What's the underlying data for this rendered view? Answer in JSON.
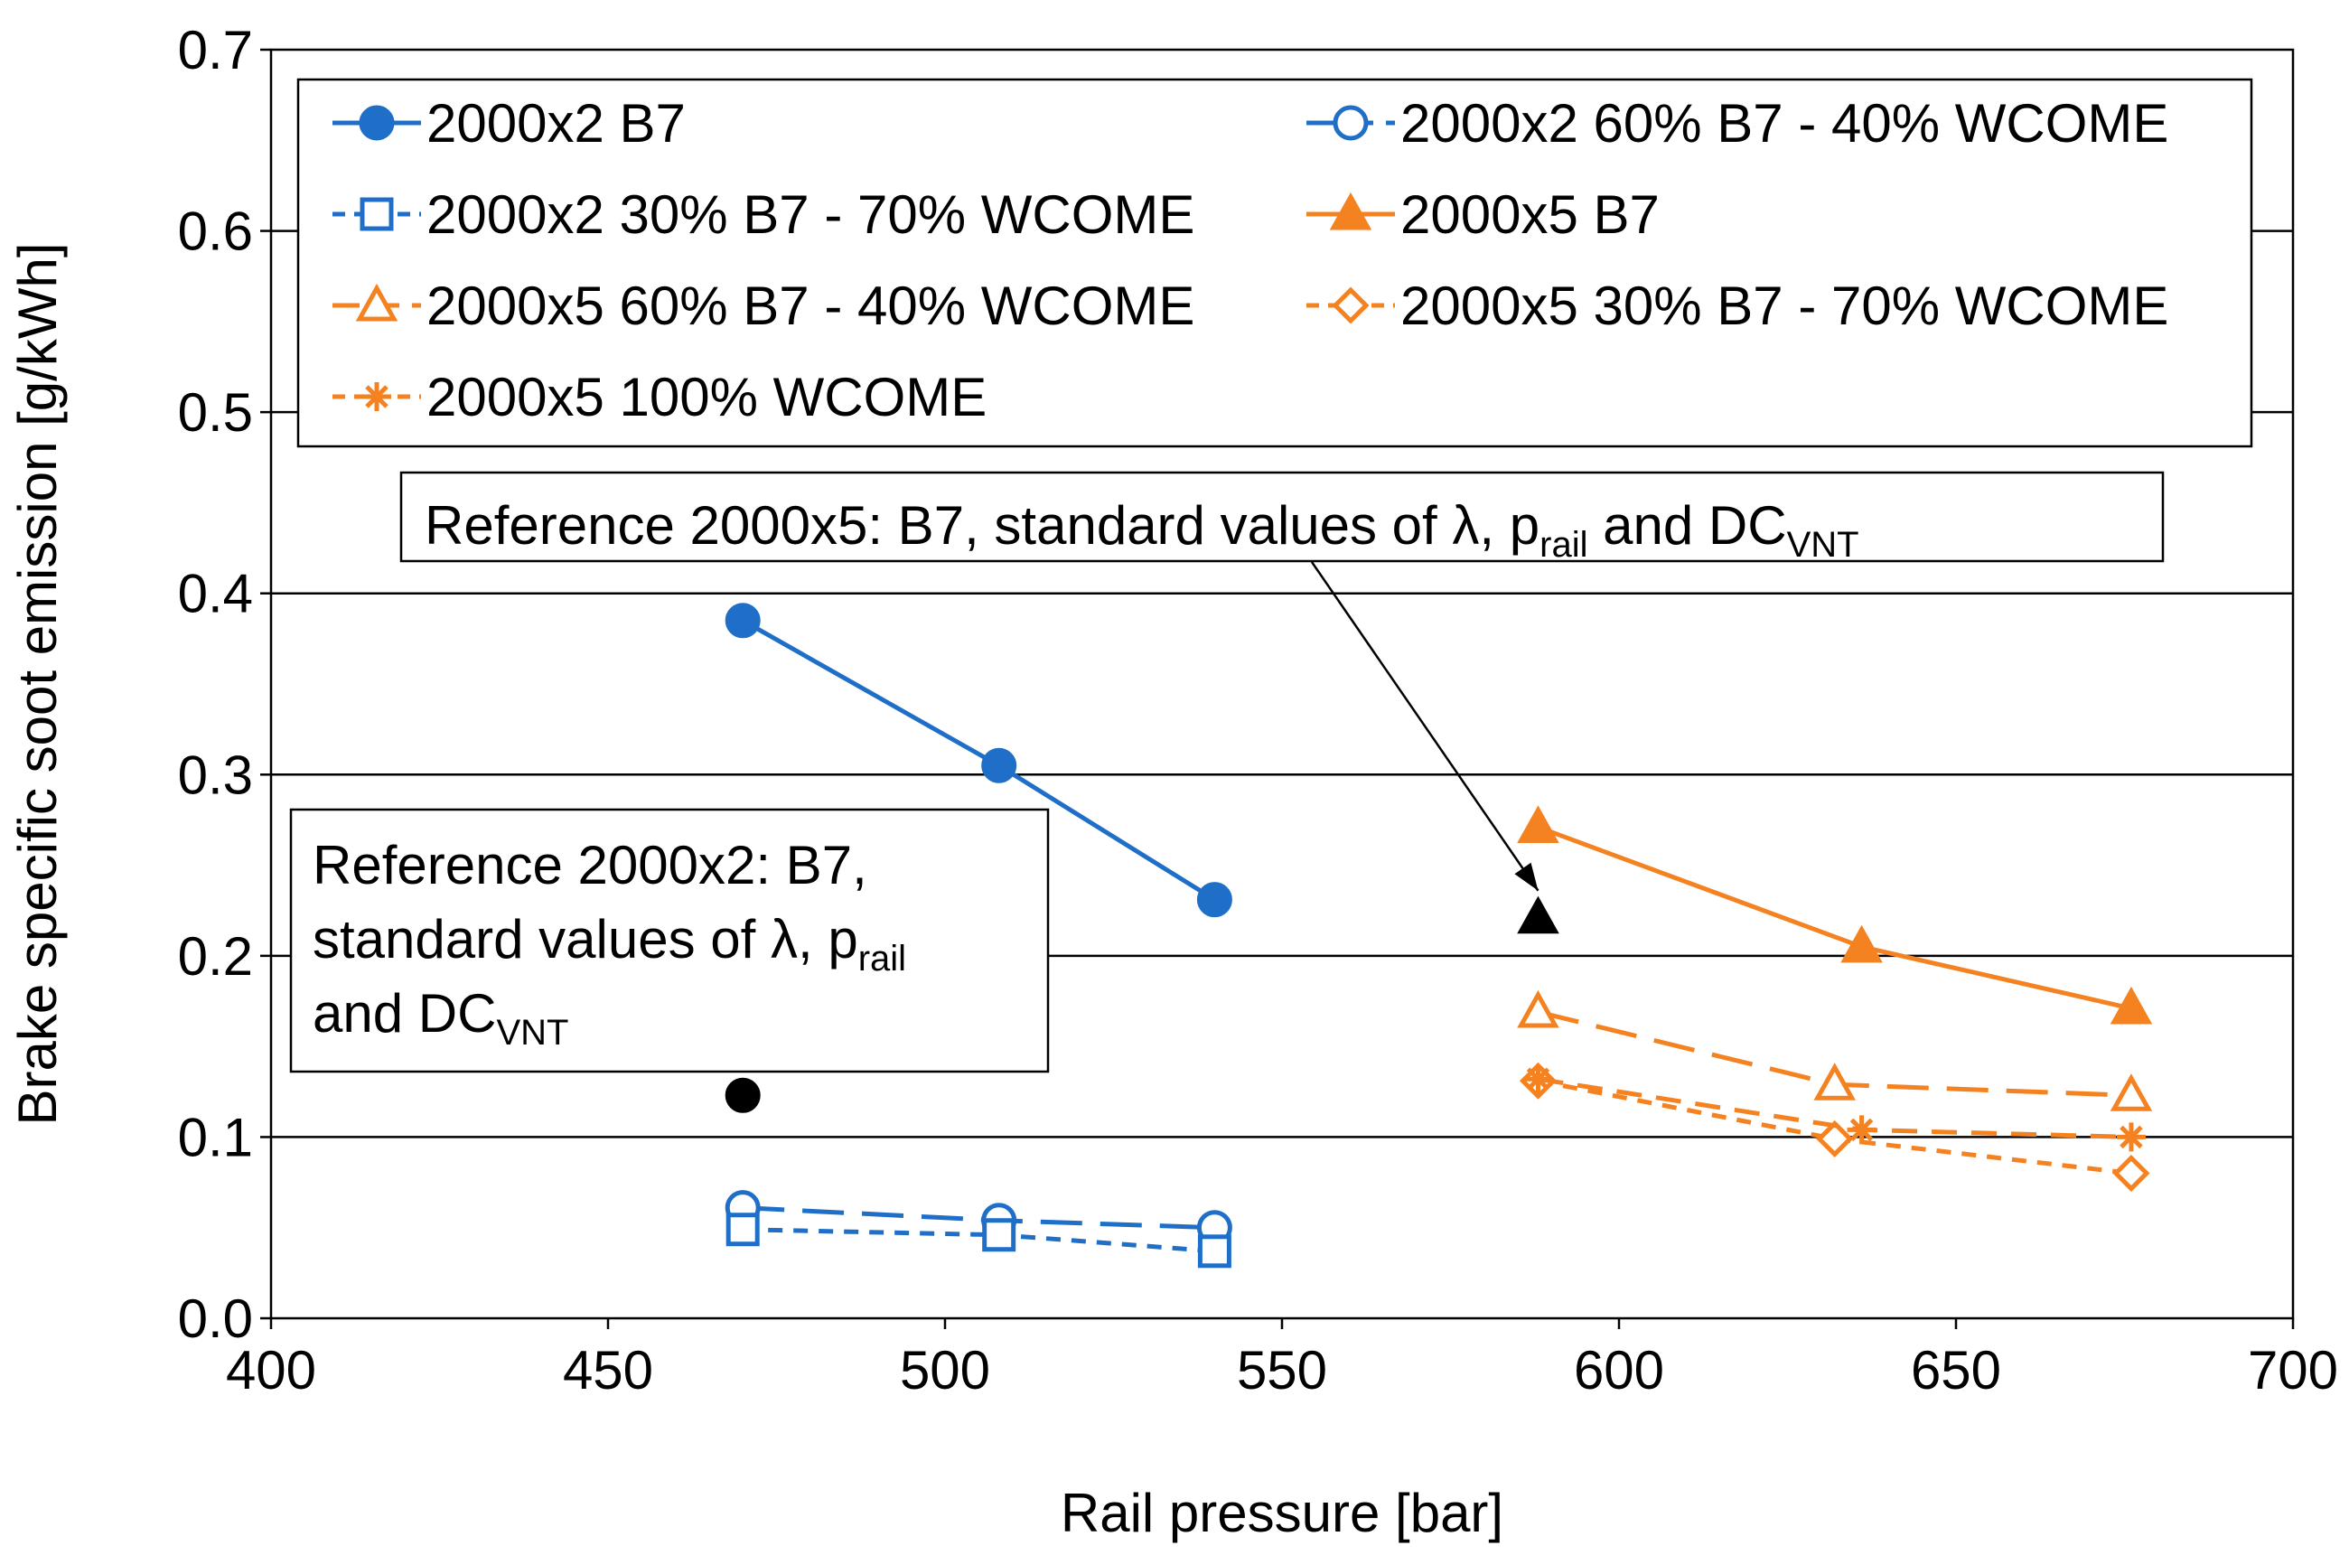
{
  "chart_data": {
    "type": "line",
    "title": "",
    "xlabel": "Rail pressure [bar]",
    "ylabel": "Brake specific soot emission [g/kWh]",
    "xlim": [
      400,
      700
    ],
    "ylim": [
      0,
      0.7
    ],
    "x_ticks": [
      400,
      450,
      500,
      550,
      600,
      650,
      700
    ],
    "y_ticks": [
      0,
      0.1,
      0.2,
      0.3,
      0.4,
      0.5,
      0.6,
      0.7
    ],
    "x_tick_labels": [
      "400",
      "450",
      "500",
      "550",
      "600",
      "650",
      "700"
    ],
    "y_tick_labels": [
      "0.0",
      "0.1",
      "0.2",
      "0.3",
      "0.4",
      "0.5",
      "0.6",
      "0.7"
    ],
    "grid": "horizontal major gridlines",
    "legend_position": "top-left inside plot, two columns",
    "series": [
      {
        "name": "2000x2 B7",
        "color": "#1f6fc8",
        "marker": "circle",
        "filled": true,
        "dash": "solid",
        "x": [
          470,
          508,
          540
        ],
        "y": [
          0.385,
          0.305,
          0.231
        ]
      },
      {
        "name": "2000x2 60% B7 - 40% WCOME",
        "color": "#1f6fc8",
        "marker": "circle",
        "filled": false,
        "dash": "long",
        "x": [
          470,
          508,
          540
        ],
        "y": [
          0.061,
          0.054,
          0.05
        ]
      },
      {
        "name": "2000x2 30% B7 - 70% WCOME",
        "color": "#1f6fc8",
        "marker": "square",
        "filled": false,
        "dash": "short",
        "x": [
          470,
          508,
          540
        ],
        "y": [
          0.049,
          0.046,
          0.037
        ]
      },
      {
        "name": "2000x5 B7",
        "color": "#f58220",
        "marker": "triangle",
        "filled": true,
        "dash": "solid",
        "x": [
          588,
          636,
          676
        ],
        "y": [
          0.271,
          0.205,
          0.171
        ]
      },
      {
        "name": "2000x5 60% B7 - 40% WCOME",
        "color": "#f58220",
        "marker": "triangle",
        "filled": false,
        "dash": "long",
        "x": [
          588,
          632,
          676
        ],
        "y": [
          0.169,
          0.129,
          0.123
        ]
      },
      {
        "name": "2000x5 30% B7 - 70% WCOME",
        "color": "#f58220",
        "marker": "diamond",
        "filled": false,
        "dash": "short",
        "x": [
          588,
          632,
          676
        ],
        "y": [
          0.131,
          0.099,
          0.08
        ]
      },
      {
        "name": "2000x5 100% WCOME",
        "color": "#f58220",
        "marker": "asterisk",
        "filled": false,
        "dash": "medium",
        "x": [
          588,
          636,
          676
        ],
        "y": [
          0.132,
          0.104,
          0.1
        ]
      }
    ],
    "reference_points": [
      {
        "name": "Reference 2000x2",
        "x": 470,
        "y": 0.123,
        "marker": "circle",
        "color": "#000000"
      },
      {
        "name": "Reference 2000x5",
        "x": 588,
        "y": 0.221,
        "marker": "triangle",
        "color": "#000000"
      }
    ],
    "annotations": [
      {
        "id": "ref5",
        "lines": [
          [
            {
              "t": "Reference 2000x5: B7, standard values of "
            },
            {
              "t": "λ"
            },
            {
              "t": ", p"
            },
            {
              "t": "rail",
              "sub": true
            },
            {
              "t": " and DC"
            },
            {
              "t": "VNT",
              "sub": true
            }
          ]
        ]
      },
      {
        "id": "ref2",
        "lines": [
          [
            {
              "t": "Reference 2000x2: B7,"
            }
          ],
          [
            {
              "t": "standard values of "
            },
            {
              "t": "λ"
            },
            {
              "t": ", p"
            },
            {
              "t": "rail",
              "sub": true
            }
          ],
          [
            {
              "t": "and DC"
            },
            {
              "t": "VNT",
              "sub": true
            }
          ]
        ]
      }
    ]
  }
}
